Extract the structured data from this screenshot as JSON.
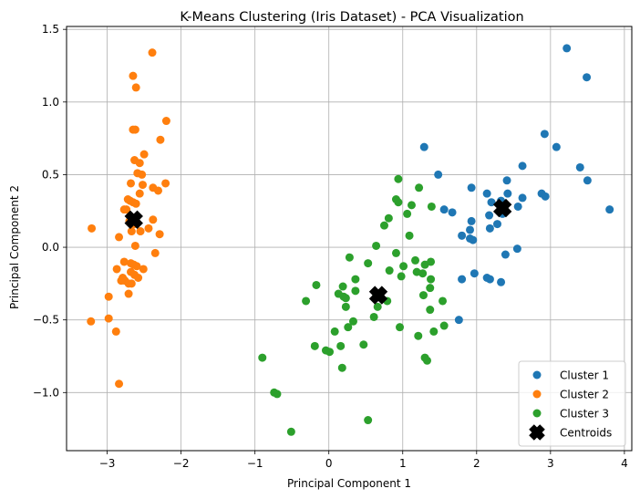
{
  "chart_data": {
    "type": "scatter",
    "title": "K-Means Clustering (Iris Dataset) - PCA Visualization",
    "xlabel": "Principal Component 1",
    "ylabel": "Principal Component 2",
    "xlim": [
      -3.55,
      4.1
    ],
    "ylim": [
      -1.4,
      1.52
    ],
    "xticks": [
      -3,
      -2,
      -1,
      0,
      1,
      2,
      3,
      4
    ],
    "xtick_labels": [
      "−3",
      "−2",
      "−1",
      "0",
      "1",
      "2",
      "3",
      "4"
    ],
    "yticks": [
      -1.0,
      -0.5,
      0.0,
      0.5,
      1.0,
      1.5
    ],
    "ytick_labels": [
      "−1.0",
      "−0.5",
      "0.0",
      "0.5",
      "1.0",
      "1.5"
    ],
    "grid": true,
    "legend_position": "bottom-right",
    "series": [
      {
        "name": "Cluster 1",
        "color": "#1f77b4",
        "marker": "circle",
        "points": [
          [
            3.22,
            1.37
          ],
          [
            3.49,
            1.17
          ],
          [
            1.29,
            0.69
          ],
          [
            2.92,
            0.78
          ],
          [
            3.08,
            0.69
          ],
          [
            2.62,
            0.56
          ],
          [
            3.4,
            0.55
          ],
          [
            1.48,
            0.5
          ],
          [
            3.5,
            0.46
          ],
          [
            2.41,
            0.46
          ],
          [
            1.93,
            0.41
          ],
          [
            2.88,
            0.37
          ],
          [
            2.93,
            0.35
          ],
          [
            2.14,
            0.37
          ],
          [
            2.42,
            0.37
          ],
          [
            2.62,
            0.34
          ],
          [
            2.33,
            0.32
          ],
          [
            2.2,
            0.31
          ],
          [
            3.8,
            0.26
          ],
          [
            1.56,
            0.26
          ],
          [
            1.67,
            0.24
          ],
          [
            2.56,
            0.28
          ],
          [
            2.35,
            0.23
          ],
          [
            2.17,
            0.22
          ],
          [
            1.93,
            0.18
          ],
          [
            2.28,
            0.16
          ],
          [
            2.18,
            0.13
          ],
          [
            1.91,
            0.12
          ],
          [
            1.8,
            0.08
          ],
          [
            1.91,
            0.06
          ],
          [
            1.95,
            0.05
          ],
          [
            2.55,
            -0.01
          ],
          [
            2.39,
            -0.05
          ],
          [
            1.97,
            -0.18
          ],
          [
            1.8,
            -0.22
          ],
          [
            2.14,
            -0.21
          ],
          [
            2.18,
            -0.22
          ],
          [
            2.33,
            -0.24
          ],
          [
            1.76,
            -0.5
          ]
        ]
      },
      {
        "name": "Cluster 2",
        "color": "#ff7f0e",
        "marker": "circle",
        "points": [
          [
            -2.39,
            1.34
          ],
          [
            -2.65,
            1.18
          ],
          [
            -2.61,
            1.1
          ],
          [
            -2.2,
            0.87
          ],
          [
            -2.65,
            0.81
          ],
          [
            -2.62,
            0.81
          ],
          [
            -2.28,
            0.74
          ],
          [
            -2.5,
            0.64
          ],
          [
            -2.63,
            0.6
          ],
          [
            -2.56,
            0.58
          ],
          [
            -2.59,
            0.51
          ],
          [
            -2.53,
            0.5
          ],
          [
            -2.68,
            0.44
          ],
          [
            -2.21,
            0.44
          ],
          [
            -2.52,
            0.43
          ],
          [
            -2.38,
            0.41
          ],
          [
            -2.31,
            0.39
          ],
          [
            -2.56,
            0.37
          ],
          [
            -2.72,
            0.33
          ],
          [
            -2.65,
            0.31
          ],
          [
            -2.69,
            0.32
          ],
          [
            -2.61,
            0.3
          ],
          [
            -2.77,
            0.26
          ],
          [
            -2.74,
            0.26
          ],
          [
            -2.68,
            0.21
          ],
          [
            -2.38,
            0.19
          ],
          [
            -2.7,
            0.18
          ],
          [
            -2.63,
            0.16
          ],
          [
            -2.44,
            0.13
          ],
          [
            -3.21,
            0.13
          ],
          [
            -2.67,
            0.11
          ],
          [
            -2.55,
            0.11
          ],
          [
            -2.29,
            0.09
          ],
          [
            -2.84,
            0.07
          ],
          [
            -2.62,
            0.01
          ],
          [
            -2.35,
            -0.04
          ],
          [
            -2.77,
            -0.1
          ],
          [
            -2.68,
            -0.11
          ],
          [
            -2.64,
            -0.12
          ],
          [
            -2.6,
            -0.13
          ],
          [
            -2.51,
            -0.15
          ],
          [
            -2.87,
            -0.15
          ],
          [
            -2.68,
            -0.17
          ],
          [
            -2.63,
            -0.19
          ],
          [
            -2.79,
            -0.21
          ],
          [
            -2.58,
            -0.21
          ],
          [
            -2.76,
            -0.23
          ],
          [
            -2.81,
            -0.23
          ],
          [
            -2.71,
            -0.25
          ],
          [
            -2.67,
            -0.25
          ],
          [
            -2.71,
            -0.32
          ],
          [
            -2.98,
            -0.34
          ],
          [
            -2.98,
            -0.49
          ],
          [
            -3.22,
            -0.51
          ],
          [
            -2.88,
            -0.58
          ],
          [
            -2.84,
            -0.94
          ]
        ]
      },
      {
        "name": "Cluster 3",
        "color": "#2ca02c",
        "marker": "circle",
        "points": [
          [
            0.94,
            0.47
          ],
          [
            1.22,
            0.41
          ],
          [
            0.91,
            0.33
          ],
          [
            0.94,
            0.31
          ],
          [
            1.12,
            0.29
          ],
          [
            1.39,
            0.28
          ],
          [
            1.06,
            0.23
          ],
          [
            0.81,
            0.2
          ],
          [
            0.75,
            0.15
          ],
          [
            1.09,
            0.08
          ],
          [
            0.64,
            0.01
          ],
          [
            0.91,
            -0.04
          ],
          [
            0.28,
            -0.07
          ],
          [
            0.53,
            -0.11
          ],
          [
            1.01,
            -0.13
          ],
          [
            1.17,
            -0.09
          ],
          [
            1.38,
            -0.1
          ],
          [
            1.3,
            -0.12
          ],
          [
            0.82,
            -0.16
          ],
          [
            1.19,
            -0.17
          ],
          [
            1.27,
            -0.18
          ],
          [
            0.98,
            -0.2
          ],
          [
            0.36,
            -0.22
          ],
          [
            1.38,
            -0.22
          ],
          [
            -0.17,
            -0.26
          ],
          [
            0.19,
            -0.27
          ],
          [
            0.36,
            -0.3
          ],
          [
            1.37,
            -0.28
          ],
          [
            0.13,
            -0.32
          ],
          [
            0.2,
            -0.34
          ],
          [
            1.28,
            -0.33
          ],
          [
            0.23,
            -0.35
          ],
          [
            0.64,
            -0.34
          ],
          [
            0.79,
            -0.37
          ],
          [
            -0.31,
            -0.37
          ],
          [
            1.54,
            -0.37
          ],
          [
            0.66,
            -0.41
          ],
          [
            0.23,
            -0.41
          ],
          [
            1.37,
            -0.43
          ],
          [
            0.61,
            -0.48
          ],
          [
            0.33,
            -0.51
          ],
          [
            0.96,
            -0.55
          ],
          [
            0.26,
            -0.55
          ],
          [
            1.56,
            -0.54
          ],
          [
            1.42,
            -0.58
          ],
          [
            0.08,
            -0.58
          ],
          [
            1.21,
            -0.61
          ],
          [
            0.47,
            -0.67
          ],
          [
            -0.19,
            -0.68
          ],
          [
            0.16,
            -0.68
          ],
          [
            -0.04,
            -0.71
          ],
          [
            0.01,
            -0.72
          ],
          [
            1.3,
            -0.76
          ],
          [
            1.33,
            -0.78
          ],
          [
            0.18,
            -0.83
          ],
          [
            -0.9,
            -0.76
          ],
          [
            -0.74,
            -1.0
          ],
          [
            -0.7,
            -1.01
          ],
          [
            -0.51,
            -1.27
          ],
          [
            0.53,
            -1.19
          ]
        ]
      }
    ],
    "centroids": {
      "name": "Centroids",
      "color": "#000000",
      "marker": "X",
      "points": [
        [
          -2.64,
          0.19
        ],
        [
          0.67,
          -0.33
        ],
        [
          2.35,
          0.27
        ]
      ]
    }
  }
}
